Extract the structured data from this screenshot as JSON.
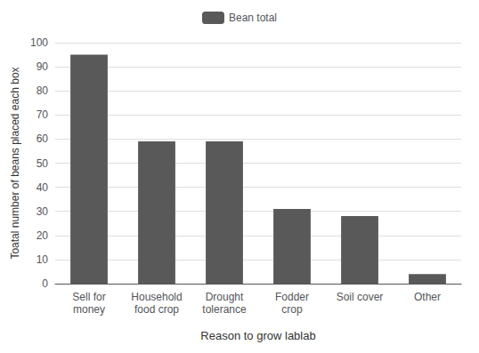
{
  "chart_data": {
    "type": "bar",
    "categories": [
      "Sell for\nmoney",
      "Household\nfood crop",
      "Drought\ntolerance",
      "Fodder\ncrop",
      "Soil cover",
      "Other"
    ],
    "series": [
      {
        "name": "Bean total",
        "color": "#595959",
        "values": [
          95,
          59,
          59,
          31,
          28,
          4
        ]
      }
    ],
    "xlabel": "Reason to grow lablab",
    "ylabel": "Toatal number of beans placed each box",
    "ylim": [
      0,
      100
    ],
    "yticks": [
      0,
      10,
      20,
      30,
      40,
      50,
      60,
      70,
      80,
      90,
      100
    ],
    "grid": true,
    "legend": "top"
  }
}
